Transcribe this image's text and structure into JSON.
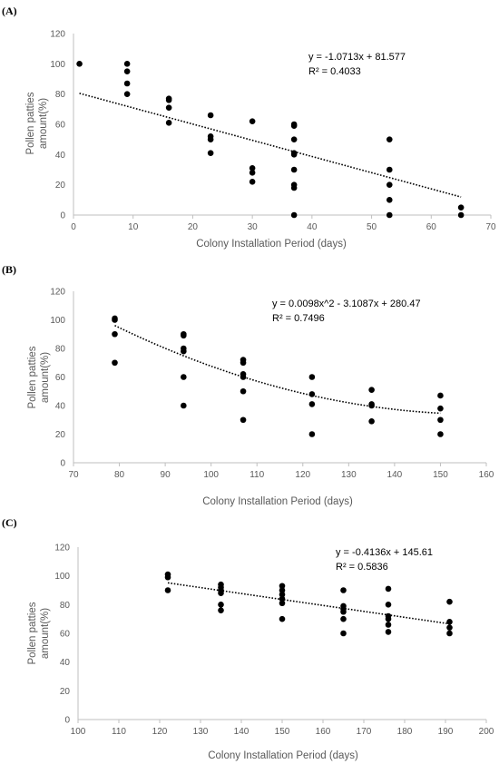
{
  "chart_data": [
    {
      "panel_label": "(A)",
      "type": "scatter",
      "xlabel": "Colony Installation Period (days)",
      "ylabel_lines": [
        "Pollen patties",
        "amount(%)"
      ],
      "xlim": [
        0,
        70
      ],
      "ylim": [
        0,
        120
      ],
      "xticks": [
        0,
        10,
        20,
        30,
        40,
        50,
        60,
        70
      ],
      "yticks": [
        0,
        20,
        40,
        60,
        80,
        100,
        120
      ],
      "trendline": {
        "kind": "linear",
        "coeffs": [
          -1.0713,
          81.577
        ],
        "x_range": [
          1,
          65
        ],
        "style": "dotted"
      },
      "equation": "y = -1.0713x + 81.577",
      "r_squared": "R² = 0.4033",
      "points": [
        [
          1,
          100
        ],
        [
          9,
          100
        ],
        [
          9,
          95
        ],
        [
          9,
          87
        ],
        [
          9,
          80
        ],
        [
          16,
          77
        ],
        [
          16,
          76
        ],
        [
          16,
          71
        ],
        [
          16,
          61
        ],
        [
          23,
          66
        ],
        [
          23,
          52
        ],
        [
          23,
          50
        ],
        [
          23,
          41
        ],
        [
          30,
          62
        ],
        [
          30,
          31
        ],
        [
          30,
          28
        ],
        [
          30,
          22
        ],
        [
          37,
          60
        ],
        [
          37,
          59
        ],
        [
          37,
          50
        ],
        [
          37,
          41
        ],
        [
          37,
          40
        ],
        [
          37,
          30
        ],
        [
          37,
          20
        ],
        [
          37,
          18
        ],
        [
          37,
          0
        ],
        [
          53,
          50
        ],
        [
          53,
          30
        ],
        [
          53,
          20
        ],
        [
          53,
          10
        ],
        [
          53,
          0
        ],
        [
          65,
          5
        ],
        [
          65,
          0
        ]
      ]
    },
    {
      "panel_label": "(B)",
      "type": "scatter",
      "xlabel": "Colony Installation Period (days)",
      "ylabel_lines": [
        "Pollen patties",
        "amount(%)"
      ],
      "xlim": [
        70,
        160
      ],
      "ylim": [
        0,
        120
      ],
      "xticks": [
        70,
        80,
        90,
        100,
        110,
        120,
        130,
        140,
        150,
        160
      ],
      "yticks": [
        0,
        20,
        40,
        60,
        80,
        100,
        120
      ],
      "trendline": {
        "kind": "quadratic",
        "coeffs": [
          0.0098,
          -3.1087,
          280.47
        ],
        "x_range": [
          79,
          150
        ],
        "style": "dotted"
      },
      "equation": "y = 0.0098x^2 - 3.1087x + 280.47",
      "r_squared": "R² = 0.7496",
      "points": [
        [
          79,
          101
        ],
        [
          79,
          100
        ],
        [
          79,
          90
        ],
        [
          79,
          70
        ],
        [
          94,
          90
        ],
        [
          94,
          89
        ],
        [
          94,
          80
        ],
        [
          94,
          78
        ],
        [
          94,
          60
        ],
        [
          94,
          40
        ],
        [
          107,
          72
        ],
        [
          107,
          70
        ],
        [
          107,
          62
        ],
        [
          107,
          60
        ],
        [
          107,
          50
        ],
        [
          107,
          30
        ],
        [
          122,
          60
        ],
        [
          122,
          48
        ],
        [
          122,
          41
        ],
        [
          122,
          20
        ],
        [
          135,
          51
        ],
        [
          135,
          41
        ],
        [
          135,
          40
        ],
        [
          135,
          29
        ],
        [
          150,
          47
        ],
        [
          150,
          38
        ],
        [
          150,
          30
        ],
        [
          150,
          20
        ]
      ]
    },
    {
      "panel_label": "(C)",
      "type": "scatter",
      "xlabel": "Colony Installation Period (days)",
      "ylabel_lines": [
        "Pollen patties",
        "amount(%)"
      ],
      "xlim": [
        100,
        200
      ],
      "ylim": [
        0,
        120
      ],
      "xticks": [
        100,
        110,
        120,
        130,
        140,
        150,
        160,
        170,
        180,
        190,
        200
      ],
      "yticks": [
        0,
        20,
        40,
        60,
        80,
        100,
        120
      ],
      "trendline": {
        "kind": "linear",
        "coeffs": [
          -0.4136,
          145.61
        ],
        "x_range": [
          122,
          191
        ],
        "style": "dotted"
      },
      "equation": "y = -0.4136x + 145.61",
      "r_squared": "R² = 0.5836",
      "points": [
        [
          122,
          101
        ],
        [
          122,
          99
        ],
        [
          122,
          90
        ],
        [
          135,
          94
        ],
        [
          135,
          92
        ],
        [
          135,
          90
        ],
        [
          135,
          88
        ],
        [
          135,
          80
        ],
        [
          135,
          76
        ],
        [
          150,
          93
        ],
        [
          150,
          90
        ],
        [
          150,
          87
        ],
        [
          150,
          84
        ],
        [
          150,
          81
        ],
        [
          150,
          70
        ],
        [
          165,
          90
        ],
        [
          165,
          79
        ],
        [
          165,
          77
        ],
        [
          165,
          75
        ],
        [
          165,
          70
        ],
        [
          165,
          60
        ],
        [
          176,
          91
        ],
        [
          176,
          80
        ],
        [
          176,
          72
        ],
        [
          176,
          70
        ],
        [
          176,
          66
        ],
        [
          176,
          61
        ],
        [
          191,
          82
        ],
        [
          191,
          68
        ],
        [
          191,
          64
        ],
        [
          191,
          60
        ]
      ]
    }
  ]
}
